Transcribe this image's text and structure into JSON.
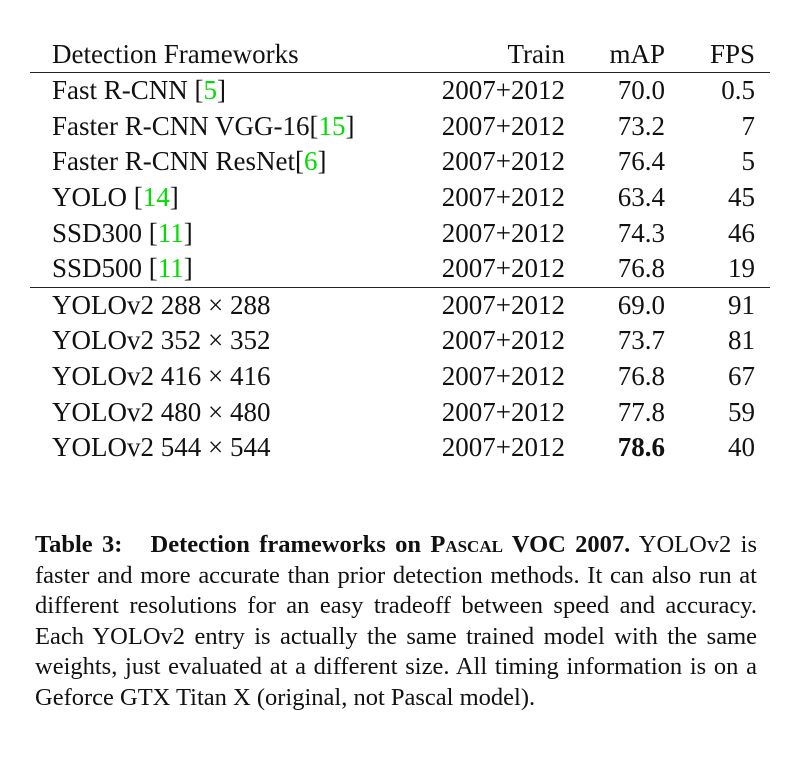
{
  "table": {
    "headers": [
      "Detection Frameworks",
      "Train",
      "mAP",
      "FPS"
    ],
    "rows": [
      {
        "name": "Fast R-CNN ",
        "ref": "5",
        "refwrap": true,
        "train": "2007+2012",
        "map": "70.0",
        "fps": "0.5"
      },
      {
        "name": "Faster R-CNN VGG-16",
        "ref": "15",
        "train": "2007+2012",
        "map": "73.2",
        "fps": "7"
      },
      {
        "name": "Faster R-CNN ResNet",
        "ref": "6",
        "train": "2007+2012",
        "map": "76.4",
        "fps": "5"
      },
      {
        "name": "YOLO ",
        "ref": "14",
        "train": "2007+2012",
        "map": "63.4",
        "fps": "45"
      },
      {
        "name": "SSD300 ",
        "ref": "11",
        "train": "2007+2012",
        "map": "74.3",
        "fps": "46"
      },
      {
        "name": "SSD500 ",
        "ref": "11",
        "train": "2007+2012",
        "map": "76.8",
        "fps": "19"
      },
      {
        "name": "YOLOv2 288 × 288",
        "train": "2007+2012",
        "map": "69.0",
        "fps": "91"
      },
      {
        "name": "YOLOv2 352 × 352",
        "train": "2007+2012",
        "map": "73.7",
        "fps": "81"
      },
      {
        "name": "YOLOv2 416 × 416",
        "train": "2007+2012",
        "map": "76.8",
        "fps": "67"
      },
      {
        "name": "YOLOv2 480 × 480",
        "train": "2007+2012",
        "map": "77.8",
        "fps": "59"
      },
      {
        "name": "YOLOv2 544 × 544",
        "train": "2007+2012",
        "map": "78.6",
        "fps": "40",
        "bold_map": true
      }
    ],
    "ref_color": "#00dd00"
  },
  "caption": {
    "label": "Table 3:",
    "title_a": "Detection frameworks on ",
    "title_sc": "Pascal",
    "title_b": " VOC 2007.",
    "body": "YOLOv2 is faster and more accurate than prior detection methods. It can also run at different resolutions for an easy tradeoff between speed and accuracy. Each YOLOv2 entry is actually the same trained model with the same weights, just evaluated at a different size. All timing information is on a Geforce GTX Titan X (original, not Pascal model)."
  }
}
